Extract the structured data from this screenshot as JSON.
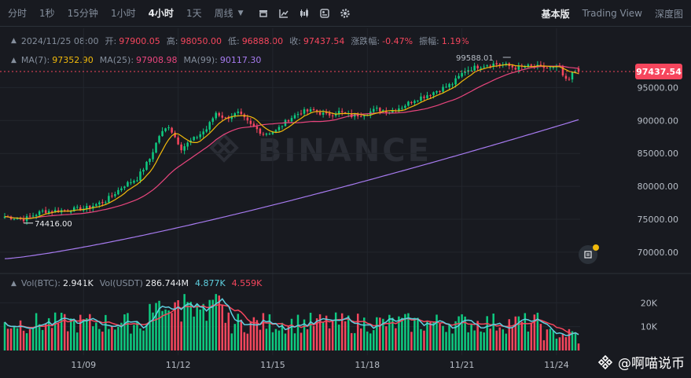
{
  "toolbar": {
    "timeframes": [
      "分时",
      "1秒",
      "15分钟",
      "1小时",
      "4小时",
      "1天",
      "周线"
    ],
    "active_timeframe": "4小时",
    "tools": [
      "candle-style-icon",
      "indicator-icon",
      "candles-icon",
      "template-icon",
      "settings-icon"
    ],
    "tabs": [
      "基本版",
      "Trading View",
      "深度图"
    ],
    "active_tab": "基本版"
  },
  "info": {
    "date": "2024/11/25 08:00",
    "open_label": "开:",
    "open": "97900.05",
    "high_label": "高:",
    "high": "98050.00",
    "low_label": "低:",
    "low": "96888.00",
    "close_label": "收:",
    "close": "97437.54",
    "change_label": "涨跌幅:",
    "change": "-0.47%",
    "amp_label": "振幅:",
    "amp": "1.19%"
  },
  "ma": {
    "ma7_label": "MA(7):",
    "ma7": "97352.90",
    "ma25_label": "MA(25):",
    "ma25": "97908.98",
    "ma99_label": "MA(99):",
    "ma99": "90117.30"
  },
  "vol": {
    "btc_label": "Vol(BTC):",
    "btc": "2.941K",
    "usdt_label": "Vol(USDT)",
    "usdt": "286.744M",
    "v1": "4.877K",
    "v2": "4.559K"
  },
  "watermark": "@啊喵说币",
  "colors": {
    "up": "#0ecb81",
    "down": "#f6465d",
    "ma7": "#f0b90b",
    "ma25": "#e8457d",
    "ma99": "#a77bf0",
    "vol_ma1": "#f6465d",
    "vol_ma2": "#5fd0e0"
  },
  "chart_data": {
    "type": "candlestick",
    "price_axis": {
      "ticks": [
        95000,
        90000,
        85000,
        80000,
        75000,
        70000
      ],
      "labels": [
        "95000.00",
        "90000.00",
        "85000.00",
        "80000.00",
        "75000.00",
        "70000.00"
      ],
      "range": [
        67000,
        104000
      ]
    },
    "volume_axis": {
      "ticks": [
        20000,
        10000
      ],
      "labels": [
        "20K",
        "10K"
      ],
      "range": [
        0,
        27000
      ]
    },
    "x_labels": [
      {
        "label": "11/09",
        "index": 25
      },
      {
        "label": "11/12",
        "index": 55
      },
      {
        "label": "11/15",
        "index": 85
      },
      {
        "label": "11/18",
        "index": 115
      },
      {
        "label": "11/21",
        "index": 145
      },
      {
        "label": "11/24",
        "index": 175
      }
    ],
    "current_price": "97437.54",
    "annotations": {
      "high": "99588.01",
      "low": "74416.00"
    },
    "close_anchors": [
      [
        0,
        75400
      ],
      [
        6,
        75000
      ],
      [
        12,
        76200
      ],
      [
        20,
        76400
      ],
      [
        26,
        76700
      ],
      [
        32,
        77800
      ],
      [
        38,
        80200
      ],
      [
        42,
        81200
      ],
      [
        46,
        84200
      ],
      [
        49,
        87700
      ],
      [
        52,
        89200
      ],
      [
        56,
        85800
      ],
      [
        60,
        87200
      ],
      [
        64,
        88700
      ],
      [
        67,
        91200
      ],
      [
        70,
        90300
      ],
      [
        74,
        91100
      ],
      [
        78,
        89300
      ],
      [
        82,
        88000
      ],
      [
        86,
        88400
      ],
      [
        90,
        90200
      ],
      [
        94,
        91300
      ],
      [
        98,
        91500
      ],
      [
        102,
        90800
      ],
      [
        106,
        91300
      ],
      [
        110,
        90700
      ],
      [
        114,
        91000
      ],
      [
        118,
        91700
      ],
      [
        122,
        91400
      ],
      [
        126,
        92100
      ],
      [
        130,
        93200
      ],
      [
        134,
        93900
      ],
      [
        138,
        94700
      ],
      [
        142,
        95600
      ],
      [
        146,
        97600
      ],
      [
        150,
        98200
      ],
      [
        154,
        98600
      ],
      [
        158,
        98500
      ],
      [
        162,
        98000
      ],
      [
        166,
        98200
      ],
      [
        170,
        98100
      ],
      [
        174,
        97900
      ],
      [
        176,
        98200
      ],
      [
        177,
        96500
      ],
      [
        179,
        96000
      ],
      [
        180,
        97400
      ],
      [
        181,
        97700
      ],
      [
        182,
        97437.54
      ]
    ]
  }
}
